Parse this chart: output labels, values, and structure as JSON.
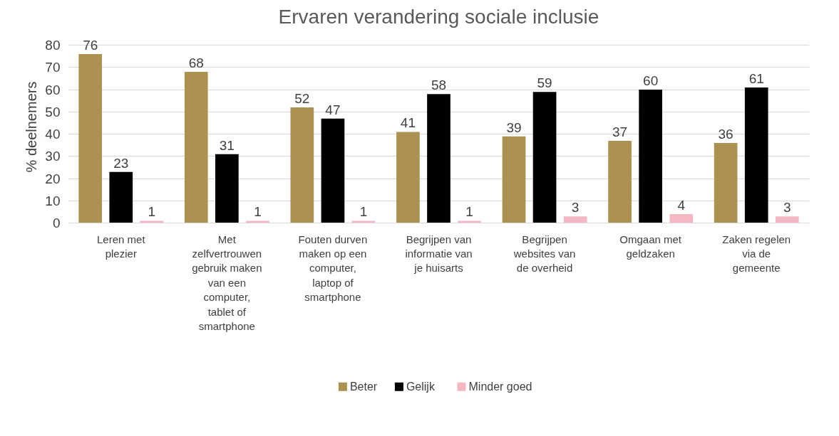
{
  "chart_data": {
    "type": "bar",
    "title": "Ervaren verandering sociale inclusie",
    "ylabel": "% deelnemers",
    "categories": [
      "Leren met plezier",
      "Met zelfvertrouwen gebruik maken van een computer, tablet of smartphone",
      "Fouten durven maken op een computer, laptop of smartphone",
      "Begrijpen van informatie van je huisarts",
      "Begrijpen websites van de overheid",
      "Omgaan met geldzaken",
      "Zaken regelen via de gemeente"
    ],
    "series": [
      {
        "name": "Beter",
        "color": "#ad9151",
        "values": [
          76,
          68,
          52,
          41,
          39,
          37,
          36
        ]
      },
      {
        "name": "Gelijk",
        "color": "#000000",
        "values": [
          23,
          31,
          47,
          58,
          59,
          60,
          61
        ]
      },
      {
        "name": "Minder goed",
        "color": "#f4b8c2",
        "values": [
          1,
          1,
          1,
          1,
          3,
          4,
          3
        ]
      }
    ],
    "ylim": [
      0,
      80
    ],
    "yticks": [
      0,
      10,
      20,
      30,
      40,
      50,
      60,
      70,
      80
    ],
    "grid": "y",
    "legend": "bottom",
    "data_labels": true
  }
}
